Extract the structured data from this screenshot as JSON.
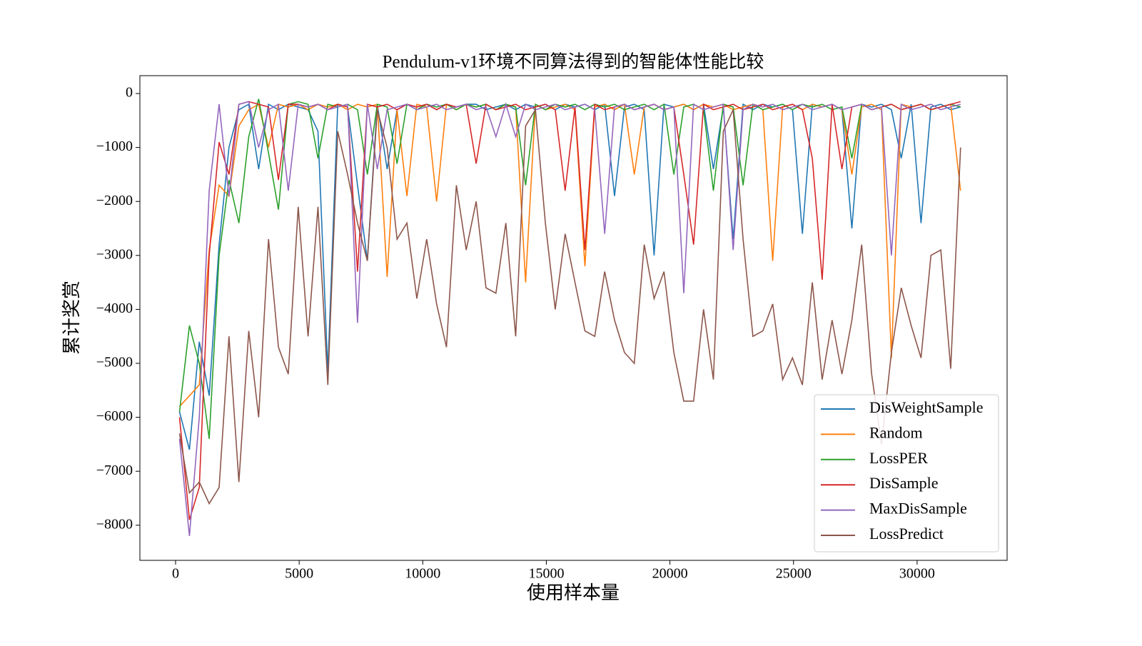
{
  "chart_data": {
    "type": "line",
    "title": "Pendulum-v1环境不同算法得到的智能体性能比较",
    "x_label": "使用样本量",
    "y_label": "累计奖赏",
    "x": [
      160,
      560,
      960,
      1360,
      1760,
      2160,
      2560,
      2960,
      3360,
      3760,
      4160,
      4560,
      4960,
      5360,
      5760,
      6160,
      6560,
      6960,
      7360,
      7760,
      8160,
      8560,
      8960,
      9360,
      9760,
      10160,
      10560,
      10960,
      11360,
      11760,
      12160,
      12560,
      12960,
      13360,
      13760,
      14160,
      14560,
      14960,
      15360,
      15760,
      16160,
      16560,
      16960,
      17360,
      17760,
      18160,
      18560,
      18960,
      19360,
      19760,
      20160,
      20560,
      20960,
      21360,
      21760,
      22160,
      22560,
      22960,
      23360,
      23760,
      24160,
      24560,
      24960,
      25360,
      25760,
      26160,
      26560,
      26960,
      27360,
      27760,
      28160,
      28560,
      28960,
      29360,
      29760,
      30160,
      30560,
      30960,
      31360,
      31760
    ],
    "series": [
      {
        "name": "DisWeightSample",
        "color": "#1f77b4",
        "values": [
          -5900,
          -6600,
          -4600,
          -5600,
          -2800,
          -1000,
          -300,
          -200,
          -1400,
          -200,
          -300,
          -200,
          -250,
          -300,
          -700,
          -5150,
          -200,
          -250,
          -1700,
          -3100,
          -200,
          -1400,
          -300,
          -200,
          -250,
          -200,
          -300,
          -200,
          -250,
          -200,
          -200,
          -300,
          -250,
          -200,
          -300,
          -200,
          -250,
          -200,
          -300,
          -200,
          -250,
          -200,
          -300,
          -200,
          -1900,
          -250,
          -200,
          -300,
          -3000,
          -200,
          -250,
          -200,
          -300,
          -200,
          -1400,
          -250,
          -2700,
          -200,
          -300,
          -200,
          -250,
          -200,
          -300,
          -2600,
          -200,
          -250,
          -200,
          -300,
          -2500,
          -200,
          -250,
          -200,
          -300,
          -1200,
          -200,
          -2400,
          -250,
          -200,
          -300,
          -250
        ]
      },
      {
        "name": "Random",
        "color": "#ff7f0e",
        "values": [
          -5800,
          -5600,
          -5400,
          -2900,
          -1700,
          -1900,
          -600,
          -300,
          -200,
          -1000,
          -200,
          -250,
          -200,
          -300,
          -200,
          -250,
          -200,
          -300,
          -200,
          -250,
          -200,
          -3400,
          -300,
          -1900,
          -200,
          -250,
          -2000,
          -200,
          -300,
          -200,
          -250,
          -200,
          -300,
          -200,
          -250,
          -3500,
          -200,
          -300,
          -250,
          -200,
          -300,
          -3200,
          -250,
          -200,
          -300,
          -200,
          -1500,
          -250,
          -200,
          -300,
          -250,
          -200,
          -300,
          -200,
          -250,
          -200,
          -300,
          -250,
          -200,
          -300,
          -3100,
          -250,
          -200,
          -300,
          -200,
          -250,
          -200,
          -300,
          -1500,
          -250,
          -200,
          -300,
          -4900,
          -200,
          -250,
          -200,
          -300,
          -250,
          -200,
          -1800
        ]
      },
      {
        "name": "LossPER",
        "color": "#2ca02c",
        "values": [
          -5900,
          -4300,
          -5000,
          -6400,
          -3000,
          -1600,
          -2400,
          -800,
          -100,
          -1100,
          -2150,
          -200,
          -150,
          -200,
          -1200,
          -200,
          -250,
          -200,
          -300,
          -1500,
          -200,
          -250,
          -1300,
          -200,
          -300,
          -200,
          -250,
          -200,
          -300,
          -200,
          -250,
          -200,
          -300,
          -200,
          -250,
          -1700,
          -200,
          -300,
          -200,
          -250,
          -200,
          -300,
          -200,
          -250,
          -200,
          -300,
          -250,
          -200,
          -300,
          -200,
          -1500,
          -250,
          -200,
          -300,
          -1800,
          -200,
          -250,
          -1700,
          -200,
          -300,
          -250,
          -200,
          -300,
          -200,
          -250,
          -200,
          -300,
          -250,
          -1200,
          -200,
          -300,
          -250,
          -200,
          -300,
          -250,
          -200,
          -300,
          -250,
          -200,
          -250
        ]
      },
      {
        "name": "DisSample",
        "color": "#d62728",
        "values": [
          -6000,
          -7900,
          -7300,
          -3000,
          -900,
          -1500,
          -200,
          -150,
          -200,
          -250,
          -1600,
          -200,
          -200,
          -250,
          -200,
          -300,
          -200,
          -250,
          -3300,
          -200,
          -250,
          -200,
          -300,
          -200,
          -250,
          -200,
          -300,
          -200,
          -250,
          -200,
          -1300,
          -200,
          -300,
          -250,
          -200,
          -300,
          -250,
          -200,
          -300,
          -1800,
          -250,
          -2900,
          -200,
          -300,
          -250,
          -200,
          -300,
          -250,
          -200,
          -300,
          -250,
          -1500,
          -2800,
          -200,
          -300,
          -250,
          -200,
          -300,
          -250,
          -200,
          -300,
          -250,
          -200,
          -300,
          -1200,
          -3450,
          -200,
          -1400,
          -250,
          -200,
          -300,
          -250,
          -200,
          -300,
          -250,
          -200,
          -300,
          -250,
          -200,
          -150
        ]
      },
      {
        "name": "MaxDisSample",
        "color": "#9467bd",
        "values": [
          -6400,
          -8200,
          -6000,
          -1800,
          -200,
          -1900,
          -200,
          -150,
          -1000,
          -300,
          -200,
          -1800,
          -200,
          -250,
          -200,
          -300,
          -250,
          -200,
          -4250,
          -200,
          -1400,
          -300,
          -250,
          -200,
          -300,
          -250,
          -200,
          -300,
          -250,
          -200,
          -300,
          -250,
          -800,
          -200,
          -800,
          -200,
          -300,
          -250,
          -200,
          -300,
          -250,
          -200,
          -300,
          -2600,
          -250,
          -200,
          -300,
          -250,
          -200,
          -300,
          -250,
          -3700,
          -200,
          -300,
          -250,
          -200,
          -2900,
          -300,
          -200,
          -250,
          -200,
          -300,
          -250,
          -200,
          -300,
          -250,
          -200,
          -300,
          -250,
          -200,
          -300,
          -250,
          -3000,
          -200,
          -300,
          -250,
          -200,
          -300,
          -250,
          -200
        ]
      },
      {
        "name": "LossPredict",
        "color": "#8c564b",
        "values": [
          -6300,
          -7400,
          -7200,
          -7600,
          -7300,
          -4500,
          -7200,
          -4400,
          -6000,
          -2700,
          -4700,
          -5200,
          -2100,
          -4500,
          -2100,
          -5400,
          -700,
          -1500,
          -2400,
          -3100,
          -300,
          -1000,
          -2700,
          -2400,
          -3800,
          -2700,
          -3900,
          -4700,
          -1700,
          -2900,
          -2000,
          -3600,
          -3700,
          -2400,
          -4500,
          -600,
          -300,
          -2400,
          -4000,
          -2600,
          -3500,
          -4400,
          -4500,
          -3300,
          -4200,
          -4800,
          -5000,
          -2800,
          -3800,
          -3300,
          -4800,
          -5700,
          -5700,
          -4000,
          -5300,
          -700,
          -300,
          -2700,
          -4500,
          -4400,
          -3900,
          -5300,
          -4900,
          -5400,
          -3500,
          -5300,
          -4200,
          -5200,
          -4200,
          -2800,
          -5200,
          -6500,
          -4800,
          -3600,
          -4300,
          -4900,
          -3000,
          -2900,
          -5100,
          -1000
        ]
      }
    ],
    "xlim": [
      -1444,
      33642
    ],
    "ylim": [
      -8651,
      331
    ],
    "xticks": [
      0,
      5000,
      10000,
      15000,
      20000,
      25000,
      30000
    ],
    "yticks": [
      0,
      {
        "value": -1000,
        "label": "−1000"
      },
      {
        "value": -2000,
        "label": "−2000"
      },
      {
        "value": -3000,
        "label": "−3000"
      },
      {
        "value": -4000,
        "label": "−4000"
      },
      {
        "value": -5000,
        "label": "−5000"
      },
      {
        "value": -6000,
        "label": "−6000"
      },
      {
        "value": -7000,
        "label": "−7000"
      },
      {
        "value": -8000,
        "label": "−8000"
      }
    ],
    "legend": "lower right"
  }
}
